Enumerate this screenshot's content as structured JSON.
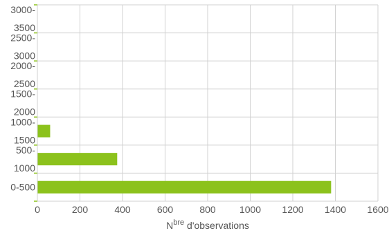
{
  "chart_data": {
    "type": "bar",
    "orientation": "horizontal",
    "categories": [
      "0-500",
      "500-1000",
      "1000-1500",
      "1500-2000",
      "2000-2500",
      "2500-3000",
      "3000-3500"
    ],
    "category_label_lines": [
      [
        "0-500"
      ],
      [
        "500-",
        "1000"
      ],
      [
        "1000-",
        "1500"
      ],
      [
        "1500-",
        "2000"
      ],
      [
        "2000-",
        "2500"
      ],
      [
        "2500-",
        "3000"
      ],
      [
        "3000-",
        "3500"
      ]
    ],
    "values": [
      1380,
      375,
      60,
      0,
      0,
      0,
      0
    ],
    "xlim": [
      0,
      1600
    ],
    "xticks": [
      0,
      200,
      400,
      600,
      800,
      1000,
      1200,
      1400,
      1600
    ],
    "xlabel": {
      "main": "N",
      "sup": "bre",
      "rest": " d'observations"
    },
    "ylabel": "",
    "title": "",
    "grid": true,
    "bar_color": "#8cc21c",
    "grid_color": "#d0d0d0",
    "axis_tick_color": "#8cc21c"
  }
}
